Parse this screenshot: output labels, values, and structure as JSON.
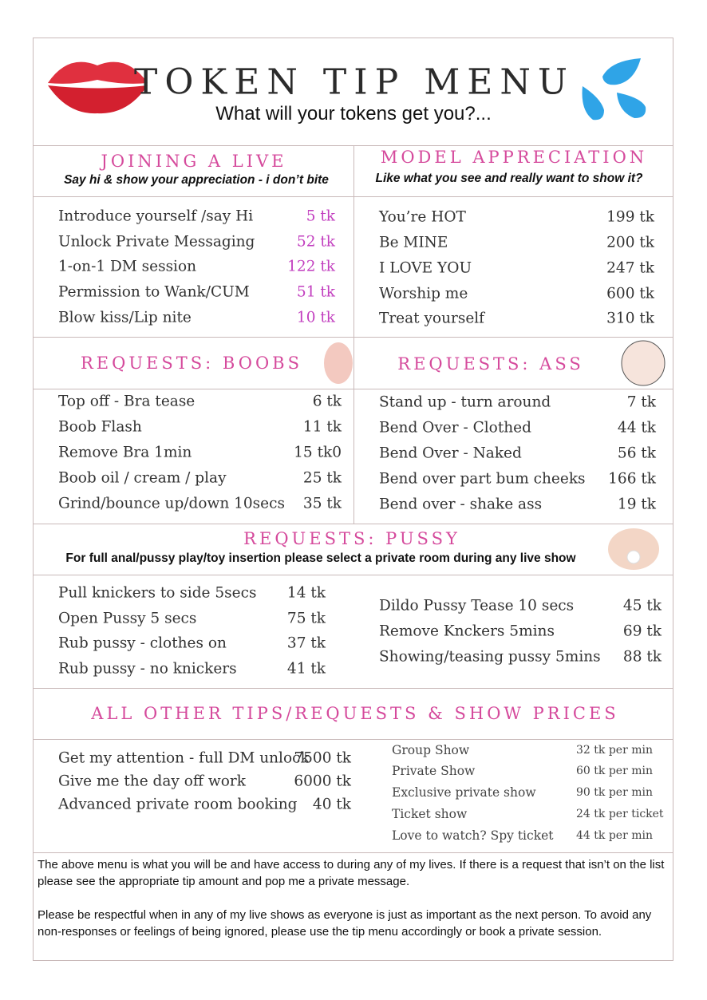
{
  "header": {
    "title": "TOKEN TIP MENU",
    "subtitle": "What will your tokens get you?..."
  },
  "joining": {
    "heading": "JOINING A LIVE",
    "note": "Say hi & show your appreciation - i don’t bite",
    "items": [
      {
        "name": "Introduce yourself /say Hi",
        "price": "5 tk"
      },
      {
        "name": "Unlock Private Messaging",
        "price": "52 tk"
      },
      {
        "name": "1-on-1 DM session",
        "price": "122 tk"
      },
      {
        "name": "Permission to Wank/CUM",
        "price": "51 tk"
      },
      {
        "name": "Blow kiss/Lip nite",
        "price": "10 tk"
      }
    ]
  },
  "appreciation": {
    "heading": "MODEL APPRECIATION",
    "note": "Like what you see and really want to show it?",
    "items": [
      {
        "name": "You’re HOT",
        "price": "199 tk"
      },
      {
        "name": "Be MINE",
        "price": "200 tk"
      },
      {
        "name": "I LOVE YOU",
        "price": "247 tk"
      },
      {
        "name": "Worship me",
        "price": "600 tk"
      },
      {
        "name": "Treat yourself",
        "price": "310 tk"
      }
    ]
  },
  "boobs": {
    "heading": "REQUESTS: BOOBS",
    "items": [
      {
        "name": "Top off - Bra tease",
        "price": "6 tk"
      },
      {
        "name": "Boob Flash",
        "price": "11 tk"
      },
      {
        "name": "Remove Bra 1min",
        "price": "15 tk0"
      },
      {
        "name": "Boob oil / cream / play",
        "price": "25 tk"
      },
      {
        "name": "Grind/bounce up/down 10secs",
        "price": "35 tk"
      }
    ]
  },
  "ass": {
    "heading": "REQUESTS: ASS",
    "items": [
      {
        "name": "Stand up - turn around",
        "price": "7 tk"
      },
      {
        "name": "Bend Over - Clothed",
        "price": "44 tk"
      },
      {
        "name": "Bend Over - Naked",
        "price": "56 tk"
      },
      {
        "name": "Bend over part bum cheeks",
        "price": "166 tk"
      },
      {
        "name": "Bend over - shake ass",
        "price": "19 tk"
      }
    ]
  },
  "pussy": {
    "heading": "REQUESTS: PUSSY",
    "note": "For full anal/pussy play/toy insertion please select a private room during  any live show",
    "left": [
      {
        "name": "Pull knickers to side 5secs",
        "price": "14 tk"
      },
      {
        "name": "Open Pussy 5 secs",
        "price": "75 tk"
      },
      {
        "name": "Rub pussy - clothes on",
        "price": "37 tk"
      },
      {
        "name": "Rub pussy - no knickers",
        "price": "41 tk"
      }
    ],
    "right": [
      {
        "name": "Dildo Pussy Tease 10 secs",
        "price": "45 tk"
      },
      {
        "name": "Remove Knckers 5mins",
        "price": "69 tk"
      },
      {
        "name": "Showing/teasing pussy 5mins",
        "price": "88 tk"
      }
    ]
  },
  "other": {
    "heading": "ALL OTHER TIPS/REQUESTS & SHOW PRICES",
    "left": [
      {
        "name": "Get my attention - full DM unlock",
        "price": "7500 tk"
      },
      {
        "name": "Give me the day off work",
        "price": "6000 tk"
      },
      {
        "name": "Advanced private room booking",
        "price": "40 tk"
      }
    ],
    "right": [
      {
        "name": "Group Show",
        "price": "32 tk per min"
      },
      {
        "name": "Private Show",
        "price": "60 tk per min"
      },
      {
        "name": "Exclusive private show",
        "price": "90 tk per min"
      },
      {
        "name": "Ticket show",
        "price": "24 tk per ticket"
      },
      {
        "name": "Love to watch? Spy ticket",
        "price": "44 tk per min"
      }
    ]
  },
  "footer": {
    "paragraphs": [
      "The above menu is what you will be and have access to during any of my lives. If there is a request that isn’t on the list please see the appropriate tip amount and pop me a private message.",
      "Please be respectful when in any of my live shows as everyone is just as important as the next person. To avoid any non-responses or feelings of being ignored, please use the tip menu accordingly or book a private session."
    ]
  }
}
